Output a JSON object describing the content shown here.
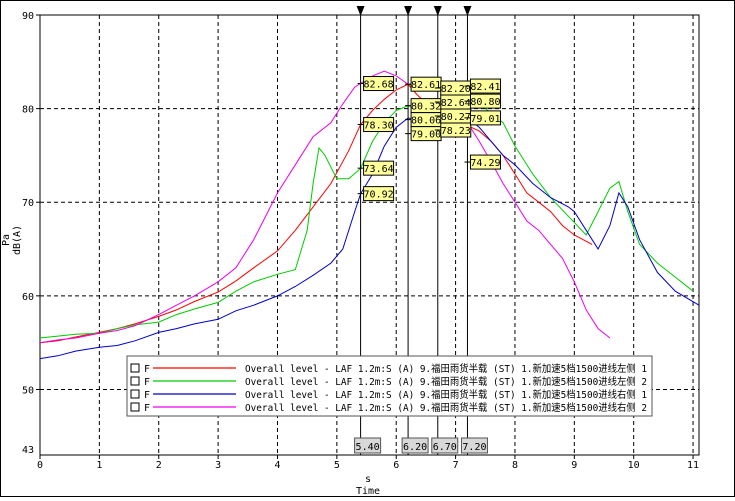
{
  "chart_data": {
    "type": "line",
    "xlabel": "s",
    "xlabel2": "Time",
    "ylabel": "Pa",
    "ylabel2": "dB(A)",
    "xlim": [
      0,
      11.1
    ],
    "ylim": [
      43,
      90
    ],
    "xticks": [
      0,
      1,
      2,
      3,
      4,
      5,
      6,
      7,
      8,
      9,
      10,
      11
    ],
    "yticks": [
      50,
      60,
      70,
      80,
      90
    ],
    "ytick_extra": 43,
    "grid": true,
    "legend_placement": "bottom-center",
    "cursors": [
      5.4,
      6.2,
      6.7,
      7.2
    ],
    "cursor_labels": [
      "5.40",
      "6.20",
      "6.70",
      "7.20"
    ],
    "series": [
      {
        "prefix": "F",
        "name": "Overall level - LAF 1.2m:S (A) 9.福田雨货半载 (ST)  1.新加速5档1500进线左侧 1",
        "color": "#ff0000",
        "x": [
          0,
          0.3,
          0.6,
          1.0,
          1.3,
          1.6,
          2.0,
          2.3,
          2.6,
          3.0,
          3.3,
          3.6,
          4.0,
          4.3,
          4.6,
          4.9,
          5.2,
          5.4,
          5.6,
          5.8,
          6.0,
          6.2,
          6.35,
          6.5,
          6.7,
          6.9,
          7.0,
          7.2,
          7.4,
          7.6,
          7.8,
          8.0,
          8.2,
          8.4,
          8.6,
          8.8,
          9.0,
          9.3
        ],
        "y": [
          55.0,
          55.2,
          55.6,
          56.1,
          56.5,
          57.0,
          57.8,
          58.5,
          59.4,
          60.4,
          61.6,
          63.0,
          64.8,
          67.0,
          69.5,
          72.0,
          75.5,
          78.3,
          79.8,
          81.0,
          82.0,
          82.6,
          81.5,
          80.6,
          80.3,
          79.5,
          78.5,
          78.2,
          77.6,
          76.5,
          75.0,
          73.0,
          71.0,
          70.0,
          69.0,
          67.5,
          66.5,
          65.5
        ]
      },
      {
        "prefix": "F",
        "name": "Overall level - LAF 1.2m:S (A) 9.福田雨货半载 (ST)  1.新加速5档1500进线左侧 2",
        "color": "#00cc00",
        "x": [
          0,
          0.3,
          0.6,
          1.0,
          1.3,
          1.6,
          2.0,
          2.3,
          2.6,
          3.0,
          3.3,
          3.6,
          4.0,
          4.3,
          4.5,
          4.6,
          4.7,
          4.8,
          5.0,
          5.2,
          5.4,
          5.6,
          5.8,
          6.0,
          6.2,
          6.4,
          6.7,
          7.0,
          7.2,
          7.5,
          7.8,
          8.0,
          8.3,
          8.6,
          8.9,
          9.2,
          9.4,
          9.6,
          9.75,
          9.9,
          10.1,
          10.4,
          10.7,
          11.0
        ],
        "y": [
          55.5,
          55.7,
          55.9,
          56.0,
          56.5,
          56.9,
          57.2,
          58.0,
          58.6,
          59.3,
          60.5,
          61.5,
          62.3,
          62.8,
          67.0,
          72.0,
          75.8,
          75.0,
          72.5,
          72.5,
          73.6,
          76.5,
          78.5,
          79.8,
          80.3,
          80.0,
          79.5,
          79.0,
          80.8,
          80.0,
          78.5,
          76.0,
          73.0,
          70.5,
          68.5,
          66.5,
          69.0,
          71.5,
          72.2,
          69.0,
          65.5,
          63.5,
          62.0,
          60.5
        ]
      },
      {
        "prefix": "F",
        "name": "Overall level - LAF 1.2m:S (A) 9.福田雨货半载 (ST)  1.新加速5档1500进线右侧 1",
        "color": "#0000cc",
        "x": [
          0,
          0.3,
          0.6,
          1.0,
          1.3,
          1.6,
          2.0,
          2.3,
          2.6,
          3.0,
          3.3,
          3.6,
          4.0,
          4.3,
          4.6,
          4.9,
          5.1,
          5.3,
          5.4,
          5.6,
          5.8,
          6.0,
          6.2,
          6.4,
          6.7,
          6.9,
          7.0,
          7.2,
          7.4,
          7.6,
          7.8,
          8.0,
          8.3,
          8.6,
          8.9,
          9.0,
          9.2,
          9.4,
          9.6,
          9.75,
          9.9,
          10.1,
          10.4,
          10.7,
          11.1
        ],
        "y": [
          53.3,
          53.6,
          54.1,
          54.5,
          54.7,
          55.2,
          56.1,
          56.5,
          57.0,
          57.5,
          58.4,
          59.0,
          60.0,
          61.0,
          62.2,
          63.5,
          65.0,
          69.0,
          70.9,
          73.0,
          76.0,
          78.0,
          79.0,
          78.8,
          80.3,
          79.0,
          78.5,
          79.0,
          78.0,
          76.5,
          75.0,
          74.0,
          72.0,
          70.5,
          69.5,
          69.0,
          67.0,
          65.0,
          67.5,
          71.0,
          69.5,
          66.0,
          62.5,
          60.5,
          59.0
        ]
      },
      {
        "prefix": "F",
        "name": "Overall level - LAF 1.2m:S (A) 9.福田雨货半载 (ST)  1.新加速5档1500进线右侧 2",
        "color": "#ee00ee",
        "x": [
          0,
          0.3,
          0.6,
          1.0,
          1.3,
          1.6,
          2.0,
          2.3,
          2.6,
          3.0,
          3.3,
          3.6,
          4.0,
          4.3,
          4.6,
          4.9,
          5.1,
          5.3,
          5.4,
          5.6,
          5.8,
          6.0,
          6.2,
          6.4,
          6.7,
          6.9,
          7.0,
          7.2,
          7.4,
          7.6,
          7.8,
          8.0,
          8.2,
          8.4,
          8.6,
          8.8,
          9.0,
          9.2,
          9.4,
          9.6
        ],
        "y": [
          55.0,
          55.3,
          55.5,
          56.0,
          56.3,
          56.8,
          58.0,
          59.0,
          60.0,
          61.5,
          63.0,
          66.0,
          71.0,
          74.0,
          77.0,
          78.5,
          80.5,
          82.3,
          82.7,
          83.5,
          84.0,
          83.5,
          82.6,
          82.4,
          82.2,
          81.0,
          79.5,
          78.5,
          76.5,
          74.3,
          72.0,
          70.0,
          68.0,
          67.0,
          65.5,
          64.0,
          61.5,
          58.5,
          56.5,
          55.5
        ]
      }
    ],
    "value_labels": [
      {
        "text": "82.68",
        "cursor": 5.4,
        "value": 82.68
      },
      {
        "text": "78.30",
        "cursor": 5.4,
        "value": 78.3
      },
      {
        "text": "73.64",
        "cursor": 5.4,
        "value": 73.64
      },
      {
        "text": "70.92",
        "cursor": 5.4,
        "value": 70.92
      },
      {
        "text": "82.61",
        "cursor": 6.2,
        "value": 82.61
      },
      {
        "text": "80.32",
        "cursor": 6.2,
        "value": 80.32
      },
      {
        "text": "80.06",
        "cursor": 6.2,
        "value": 80.06
      },
      {
        "text": "79.00",
        "cursor": 6.2,
        "value": 79.0
      },
      {
        "text": "82.20",
        "cursor": 6.7,
        "value": 82.2
      },
      {
        "text": "82.64",
        "cursor": 6.7,
        "value": 82.64
      },
      {
        "text": "80.27",
        "cursor": 6.7,
        "value": 80.27
      },
      {
        "text": "78.23",
        "cursor": 6.7,
        "value": 78.23
      },
      {
        "text": "82.41",
        "cursor": 7.2,
        "value": 82.41
      },
      {
        "text": "80.80",
        "cursor": 7.2,
        "value": 80.8
      },
      {
        "text": "79.01",
        "cursor": 7.2,
        "value": 79.01
      },
      {
        "text": "74.29",
        "cursor": 7.2,
        "value": 74.29
      }
    ]
  }
}
